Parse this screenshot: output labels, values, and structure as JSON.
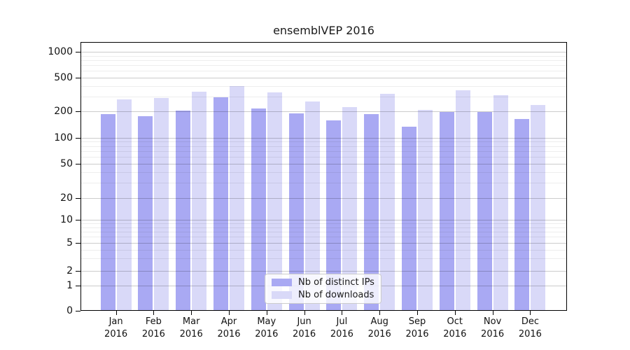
{
  "chart_data": {
    "type": "bar",
    "title": "ensemblVEP 2016",
    "categories": [
      "Jan",
      "Feb",
      "Mar",
      "Apr",
      "May",
      "Jun",
      "Jul",
      "Aug",
      "Sep",
      "Oct",
      "Nov",
      "Dec"
    ],
    "year_label": "2016",
    "series": [
      {
        "name": "Nb of distinct IPs",
        "color": "#a9a9f3",
        "values": [
          187,
          177,
          204,
          292,
          215,
          191,
          158,
          187,
          134,
          196,
          196,
          165
        ]
      },
      {
        "name": "Nb of downloads",
        "color": "#d9d9f8",
        "values": [
          276,
          286,
          339,
          394,
          333,
          261,
          226,
          323,
          207,
          355,
          309,
          237
        ]
      }
    ],
    "yscale": "log-like (compressed below 10, linear 0-1)",
    "yticks": [
      1000,
      500,
      200,
      100,
      50,
      20,
      10,
      5,
      2,
      1,
      0
    ],
    "minor_grid_values": [
      3,
      4,
      6,
      7,
      8,
      9,
      30,
      40,
      60,
      70,
      80,
      90,
      300,
      400,
      600,
      700,
      800,
      900
    ],
    "ylim": [
      0,
      1300
    ],
    "grid": true,
    "legend_position": "lower-center"
  },
  "legend": {
    "items": [
      {
        "label": "Nb of distinct IPs",
        "color": "#a9a9f3"
      },
      {
        "label": "Nb of downloads",
        "color": "#d9d9f8"
      }
    ]
  },
  "colors": {
    "distinct_ips": "#a9a9f3",
    "downloads": "#d9d9f8",
    "spine": "#000000",
    "text": "#1a1a1a"
  }
}
